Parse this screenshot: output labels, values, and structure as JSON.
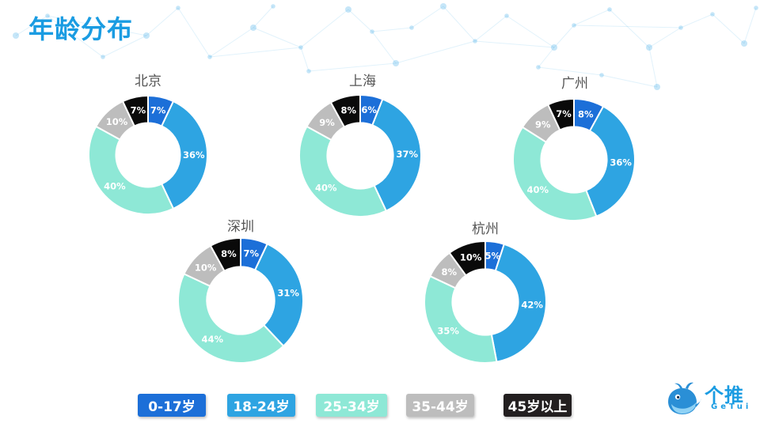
{
  "title": "年龄分布",
  "colors": {
    "age_0_17": "#1c6fd8",
    "age_18_24": "#2ea4e2",
    "age_25_34": "#8ee8d6",
    "age_35_44": "#bdbdbd",
    "age_45_plus": "#0a0a0a",
    "title": "#1a9ce2",
    "network": "#1a9ce2"
  },
  "legend": [
    {
      "label": "0-17岁",
      "color": "#1c6fd8"
    },
    {
      "label": "18-24岁",
      "color": "#2ea4e2"
    },
    {
      "label": "25-34岁",
      "color": "#8ee8d6"
    },
    {
      "label": "35-44岁",
      "color": "#bdbdbd"
    },
    {
      "label": "45岁以上",
      "color": "#231f20"
    }
  ],
  "chart_data": [
    {
      "type": "pie",
      "title": "北京",
      "categories": [
        "0-17岁",
        "18-24岁",
        "25-34岁",
        "35-44岁",
        "45岁以上"
      ],
      "values": [
        7,
        36,
        40,
        10,
        7
      ],
      "value_labels": [
        "7%",
        "36%",
        "40%",
        "10%",
        "7%"
      ]
    },
    {
      "type": "pie",
      "title": "上海",
      "categories": [
        "0-17岁",
        "18-24岁",
        "25-34岁",
        "35-44岁",
        "45岁以上"
      ],
      "values": [
        6,
        37,
        40,
        9,
        8
      ],
      "value_labels": [
        "6%",
        "37%",
        "40%",
        "9%",
        "8%"
      ]
    },
    {
      "type": "pie",
      "title": "广州",
      "categories": [
        "0-17岁",
        "18-24岁",
        "25-34岁",
        "35-44岁",
        "45岁以上"
      ],
      "values": [
        8,
        36,
        40,
        9,
        7
      ],
      "value_labels": [
        "8%",
        "36%",
        "40%",
        "9%",
        "7%"
      ]
    },
    {
      "type": "pie",
      "title": "深圳",
      "categories": [
        "0-17岁",
        "18-24岁",
        "25-34岁",
        "35-44岁",
        "45岁以上"
      ],
      "values": [
        7,
        31,
        44,
        10,
        8
      ],
      "value_labels": [
        "7%",
        "31%",
        "44%",
        "10%",
        "8%"
      ]
    },
    {
      "type": "pie",
      "title": "杭州",
      "categories": [
        "0-17岁",
        "18-24岁",
        "25-34岁",
        "35-44岁",
        "45岁以上"
      ],
      "values": [
        5,
        42,
        35,
        8,
        10
      ],
      "value_labels": [
        "5%",
        "42%",
        "35%",
        "8%",
        "10%"
      ]
    }
  ],
  "logo": {
    "name_cn": "个推",
    "name_en": "GeTui",
    "icon": "whale-logo-icon"
  }
}
